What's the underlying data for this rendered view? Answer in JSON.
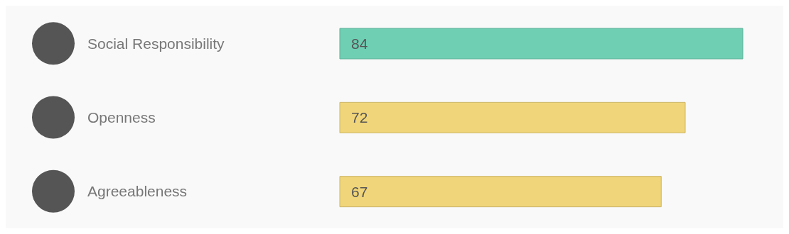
{
  "chart_data": {
    "type": "bar",
    "orientation": "horizontal",
    "categories": [
      "Social Responsibility",
      "Openness",
      "Agreeableness"
    ],
    "values": [
      84,
      72,
      67
    ],
    "colors": [
      "#6fcfb3",
      "#f0d57a",
      "#f0d57a"
    ],
    "data_labels": true,
    "tick_labels": "y"
  }
}
